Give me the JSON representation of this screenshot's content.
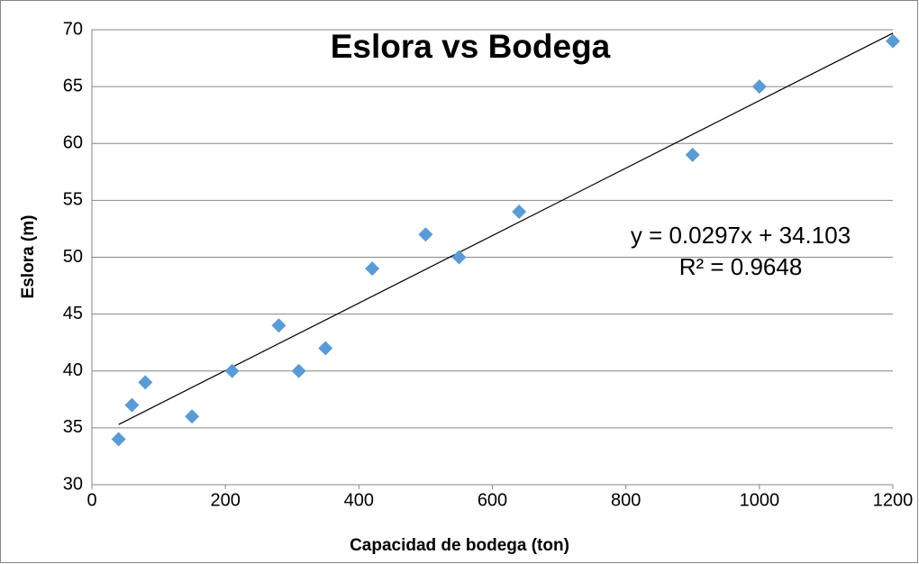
{
  "chart_data": {
    "type": "scatter",
    "title": "Eslora vs Bodega",
    "xlabel": "Capacidad de bodega (ton)",
    "ylabel": "Eslora (m)",
    "x": [
      40,
      60,
      80,
      150,
      210,
      280,
      310,
      350,
      420,
      500,
      550,
      640,
      900,
      1000,
      1200
    ],
    "values": [
      34,
      37,
      39,
      36,
      40,
      44,
      40,
      42,
      49,
      52,
      50,
      54,
      59,
      65,
      69
    ],
    "color": "#5b9bd5",
    "trendline": true,
    "annotations": [
      "y = 0.0297x + 34.103",
      "R² = 0.9648"
    ],
    "xlim": [
      0,
      1200
    ],
    "xticks": [
      0,
      200,
      400,
      600,
      800,
      1000,
      1200
    ],
    "ylim": [
      30,
      70
    ],
    "yticks": [
      30,
      35,
      40,
      45,
      50,
      55,
      60,
      65,
      70
    ],
    "grid": true
  }
}
